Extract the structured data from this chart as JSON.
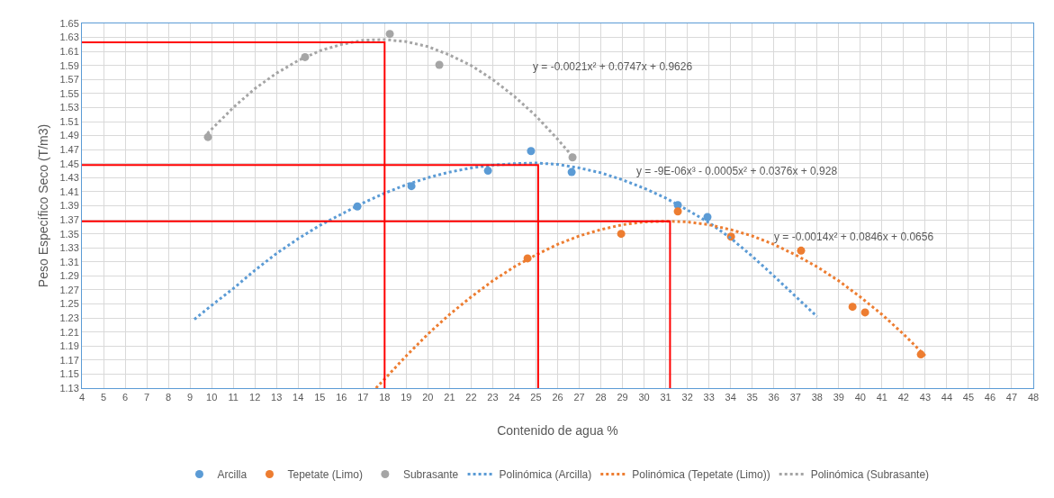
{
  "chart_data": {
    "type": "scatter",
    "xlabel": "Contenido de agua %",
    "ylabel": "Peso Específico Seco (T/m3)",
    "xlim": [
      4,
      48
    ],
    "xticks": [
      4,
      5,
      6,
      7,
      8,
      9,
      10,
      11,
      12,
      13,
      14,
      15,
      16,
      17,
      18,
      19,
      20,
      21,
      22,
      23,
      24,
      25,
      26,
      27,
      28,
      29,
      30,
      31,
      32,
      33,
      34,
      35,
      36,
      37,
      38,
      39,
      40,
      41,
      42,
      43,
      44,
      45,
      46,
      47,
      48
    ],
    "ylim": [
      1.13,
      1.65
    ],
    "yticks": [
      {
        "value": 1.13,
        "label": "1.13"
      },
      {
        "value": 1.15,
        "label": "1.15"
      },
      {
        "value": 1.17,
        "label": "1.17"
      },
      {
        "value": 1.19,
        "label": "1.19"
      },
      {
        "value": 1.21,
        "label": "1.21"
      },
      {
        "value": 1.23,
        "label": "1.23"
      },
      {
        "value": 1.25,
        "label": "1.25"
      },
      {
        "value": 1.27,
        "label": "1.27"
      },
      {
        "value": 1.29,
        "label": "1.29"
      },
      {
        "value": 1.31,
        "label": "1.31"
      },
      {
        "value": 1.33,
        "label": "1.33"
      },
      {
        "value": 1.35,
        "label": "1.35"
      },
      {
        "value": 1.37,
        "label": "1.37"
      },
      {
        "value": 1.39,
        "label": "1.39"
      },
      {
        "value": 1.41,
        "label": "1.41"
      },
      {
        "value": 1.43,
        "label": "1.43"
      },
      {
        "value": 1.45,
        "label": "1.45"
      },
      {
        "value": 1.47,
        "label": "1.47"
      },
      {
        "value": 1.49,
        "label": "1.49"
      },
      {
        "value": 1.51,
        "label": "1.51"
      },
      {
        "value": 1.53,
        "label": "1.53"
      },
      {
        "value": 1.55,
        "label": "1.55"
      },
      {
        "value": 1.57,
        "label": "1.57"
      },
      {
        "value": 1.59,
        "label": "1.59"
      },
      {
        "value": 1.61,
        "label": "1.61"
      },
      {
        "value": 1.63,
        "label": "1.63"
      },
      {
        "value": 1.65,
        "label": "1.65"
      }
    ],
    "grid": true,
    "legend": "bottom",
    "series": [
      {
        "name": "Arcilla",
        "marker": "circle",
        "color": "#5b9bd5",
        "x": [
          16.74,
          19.24,
          22.78,
          24.77,
          26.65,
          31.56,
          32.93
        ],
        "values": [
          1.389,
          1.418,
          1.44,
          1.468,
          1.438,
          1.391,
          1.374
        ]
      },
      {
        "name": "Tepetate (Limo)",
        "marker": "circle",
        "color": "#ed7d31",
        "x": [
          24.61,
          28.94,
          31.56,
          34.02,
          37.26,
          39.64,
          40.22,
          42.8
        ],
        "values": [
          1.315,
          1.35,
          1.382,
          1.346,
          1.326,
          1.246,
          1.238,
          1.178
        ]
      },
      {
        "name": "Subrasante",
        "marker": "circle",
        "color": "#a5a5a5",
        "x": [
          9.83,
          14.32,
          18.24,
          20.53,
          26.69
        ],
        "values": [
          1.488,
          1.602,
          1.635,
          1.591,
          1.459
        ]
      },
      {
        "name": "Polinómica (Arcilla)",
        "type": "line",
        "line_style": "dotted",
        "color": "#5b9bd5",
        "x": [
          9.2,
          10,
          11,
          12,
          13,
          14,
          15,
          16,
          17,
          18,
          19,
          20,
          21,
          22,
          23,
          24,
          25,
          26,
          27,
          28,
          29,
          30,
          31,
          32,
          33,
          34,
          35,
          36,
          37,
          38
        ],
        "values": [
          1.228,
          1.248,
          1.272,
          1.298,
          1.322,
          1.343,
          1.362,
          1.378,
          1.394,
          1.408,
          1.42,
          1.43,
          1.438,
          1.444,
          1.448,
          1.45,
          1.451,
          1.449,
          1.444,
          1.437,
          1.427,
          1.415,
          1.401,
          1.384,
          1.366,
          1.344,
          1.318,
          1.29,
          1.261,
          1.232
        ]
      },
      {
        "name": "Polinómica (Tepetate (Limo))",
        "type": "line",
        "line_style": "dotted",
        "color": "#ed7d31",
        "x": [
          17.6,
          18,
          19,
          20,
          21,
          22,
          23,
          24,
          25,
          26,
          27,
          28,
          29,
          30,
          31,
          32,
          33,
          34,
          35,
          36,
          37,
          38,
          39,
          40,
          41,
          42,
          43
        ],
        "values": [
          1.13,
          1.143,
          1.176,
          1.207,
          1.235,
          1.26,
          1.283,
          1.303,
          1.32,
          1.335,
          1.347,
          1.356,
          1.363,
          1.367,
          1.368,
          1.367,
          1.363,
          1.356,
          1.347,
          1.335,
          1.32,
          1.303,
          1.283,
          1.26,
          1.235,
          1.207,
          1.176
        ]
      },
      {
        "name": "Polinómica (Subrasante)",
        "type": "line",
        "line_style": "dotted",
        "color": "#a5a5a5",
        "x": [
          9.8,
          11,
          12,
          13,
          14,
          15,
          16,
          17,
          18,
          19,
          20,
          21,
          22,
          23,
          24,
          25,
          26,
          26.7
        ],
        "values": [
          1.493,
          1.53,
          1.557,
          1.579,
          1.597,
          1.611,
          1.62,
          1.626,
          1.627,
          1.624,
          1.617,
          1.605,
          1.59,
          1.57,
          1.546,
          1.518,
          1.485,
          1.46
        ]
      },
      {
        "type": "line",
        "line_style": "solid",
        "color": "#ff0000",
        "x": [
          4,
          18,
          18
        ],
        "values": [
          1.623,
          1.623,
          1.13
        ]
      },
      {
        "type": "line",
        "line_style": "solid",
        "color": "#ff0000",
        "x": [
          4,
          25.1,
          25.1
        ],
        "values": [
          1.448,
          1.448,
          1.13
        ]
      },
      {
        "type": "line",
        "line_style": "solid",
        "color": "#ff0000",
        "x": [
          4,
          31.2,
          31.2
        ],
        "values": [
          1.368,
          1.368,
          1.13
        ]
      }
    ],
    "annotations": [
      "y = -0.0021x² + 0.0747x + 0.9626",
      "y = -9E-06x³ - 0.0005x² + 0.0376x + 0.928",
      "y = -0.0014x² + 0.0846x + 0.0656"
    ]
  }
}
